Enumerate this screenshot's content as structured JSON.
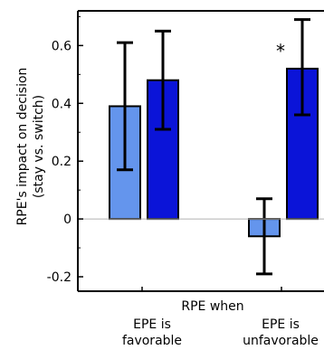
{
  "chart_data": {
    "type": "bar",
    "title": "",
    "ylabel_lines": [
      "RPE's impact on decision",
      "(stay vs. switch)"
    ],
    "xlabel": "RPE when",
    "categories": [
      {
        "lines": [
          "EPE is",
          "favorable"
        ]
      },
      {
        "lines": [
          "EPE is",
          "unfavorable"
        ]
      }
    ],
    "ylim": [
      -0.25,
      0.72
    ],
    "yticks": [
      -0.2,
      0,
      0.2,
      0.4,
      0.6
    ],
    "ytick_labels": [
      "-0.2",
      "0",
      "0.2",
      "0.4",
      "0.6"
    ],
    "series": [
      {
        "color": "#6495ed",
        "values": [
          0.39,
          -0.06
        ],
        "err_low": [
          0.17,
          -0.19
        ],
        "err_high": [
          0.61,
          0.07
        ]
      },
      {
        "color": "#0b14d8",
        "values": [
          0.48,
          0.52
        ],
        "err_low": [
          0.31,
          0.36
        ],
        "err_high": [
          0.65,
          0.69
        ]
      }
    ],
    "annotations": [
      {
        "text": "*",
        "category": 1,
        "series": 1
      }
    ],
    "zero_line_color": "#b0b0b0"
  }
}
